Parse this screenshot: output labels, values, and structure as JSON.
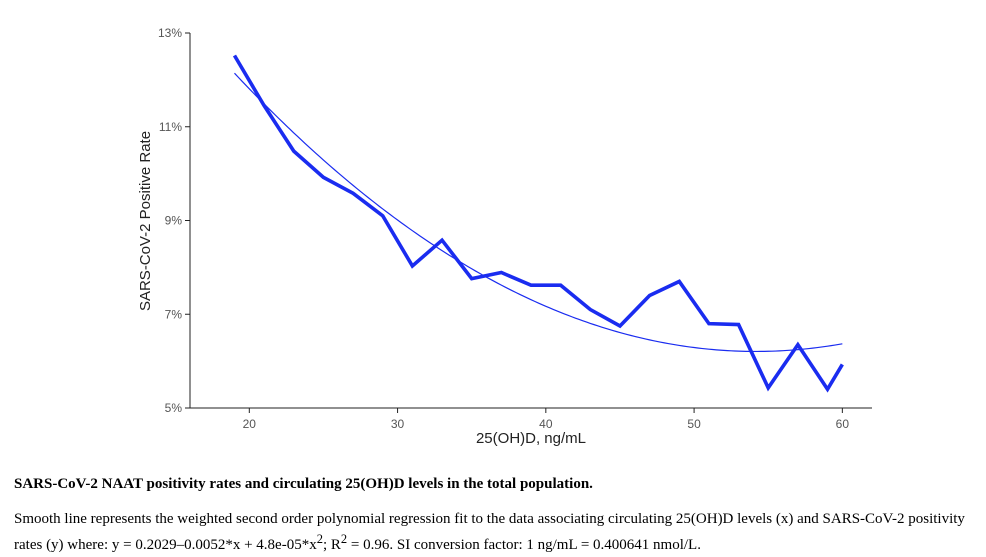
{
  "chart_data": {
    "type": "line",
    "xlabel": "25(OH)D, ng/mL",
    "ylabel": "SARS-CoV-2 Positive Rate",
    "xlim": [
      16,
      62
    ],
    "ylim": [
      0.05,
      0.13
    ],
    "x_ticks": [
      20,
      30,
      40,
      50,
      60
    ],
    "y_ticks": [
      0.05,
      0.07,
      0.09,
      0.11,
      0.13
    ],
    "y_tick_labels": [
      "5%",
      "7%",
      "9%",
      "11%",
      "13%"
    ],
    "grid": false,
    "series": [
      {
        "kind": "observed",
        "color": "#1a2cf0",
        "x": [
          19,
          21,
          23,
          25,
          27,
          29,
          31,
          33,
          35,
          37,
          39,
          41,
          43,
          45,
          47,
          49,
          51,
          53,
          55,
          57,
          59,
          60
        ],
        "y": [
          0.1252,
          0.1145,
          0.1048,
          0.0992,
          0.0958,
          0.091,
          0.0803,
          0.0858,
          0.0776,
          0.0789,
          0.0762,
          0.0762,
          0.071,
          0.0675,
          0.074,
          0.077,
          0.068,
          0.0678,
          0.0543,
          0.0635,
          0.054,
          0.0593
        ]
      },
      {
        "kind": "fit",
        "color": "#1a2cf0",
        "x_range": [
          19,
          60
        ],
        "coefficients": {
          "a": 0.2029,
          "b": -0.0052,
          "c": 4.8e-05
        }
      }
    ]
  },
  "caption": {
    "title": "SARS-CoV-2 NAAT positivity rates and circulating 25(OH)D levels in the total population.",
    "body_before_sup": "Smooth line represents the weighted second order polynomial regression fit to the data associating circulating 25(OH)D levels (x) and SARS-CoV-2 positivity rates (y) where: y = 0.2029–0.0052*x + 4.8e-05*x",
    "sup1": "2",
    "body_mid": "; R",
    "sup2": "2",
    "body_after_sup": " = 0.96. SI conversion factor: 1 ng/mL = 0.400641 nmol/L."
  }
}
